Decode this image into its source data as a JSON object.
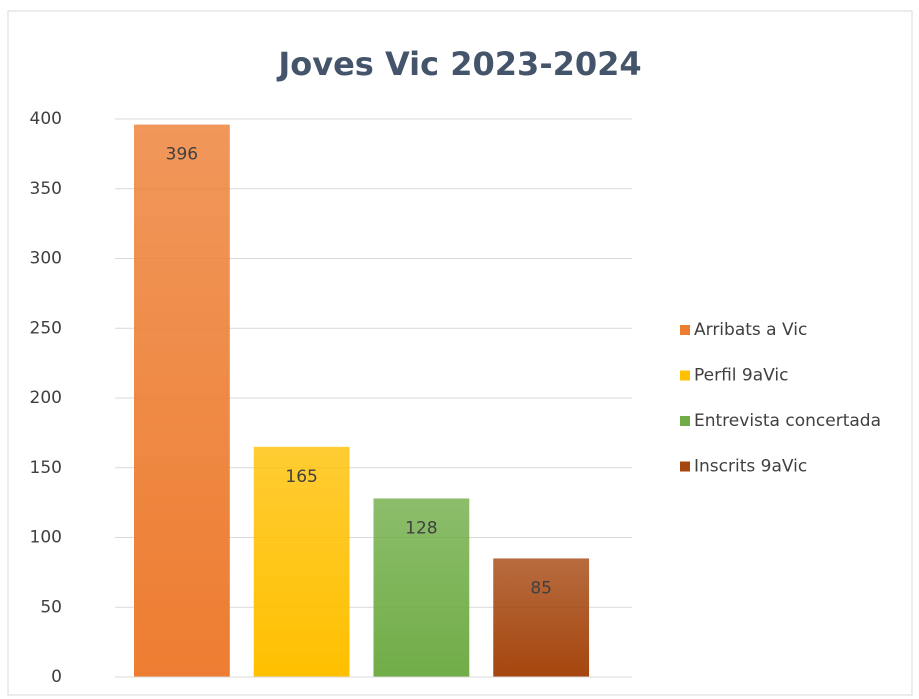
{
  "chart_data": {
    "type": "bar",
    "title": "Joves Vic 2023-2024",
    "categories": [
      null
    ],
    "series": [
      {
        "name": "Arribats a Vic",
        "color": "#ed7d31",
        "values": [
          396
        ]
      },
      {
        "name": "Perfil 9aVic",
        "color": "#ffc000",
        "values": [
          165
        ]
      },
      {
        "name": "Entrevista concertada",
        "color": "#70ad47",
        "values": [
          128
        ]
      },
      {
        "name": "Inscrits 9aVic",
        "color": "#a5460e",
        "values": [
          85
        ]
      }
    ],
    "ylim": [
      0,
      400
    ],
    "yticks": [
      0,
      50,
      100,
      150,
      200,
      250,
      300,
      350,
      400
    ],
    "grid": true,
    "legend": "right",
    "data_labels": true
  }
}
